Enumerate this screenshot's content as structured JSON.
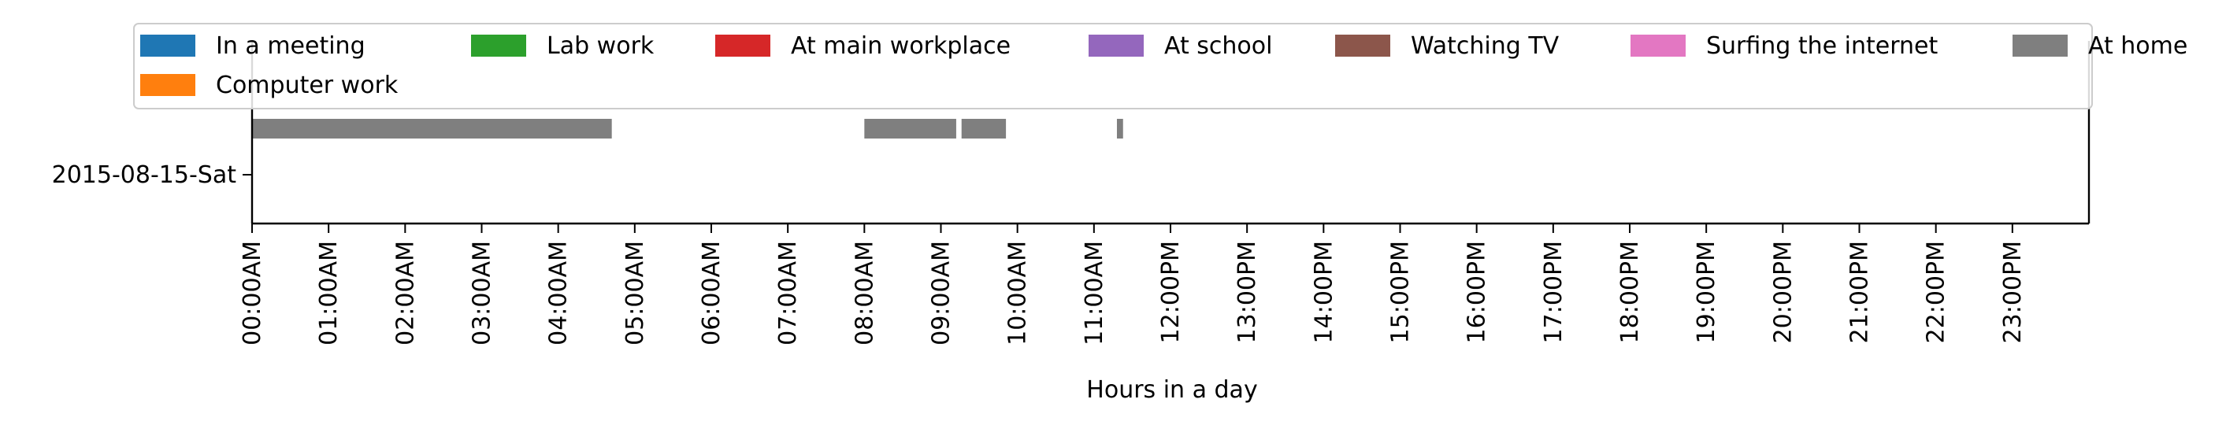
{
  "chart_data": {
    "type": "timeline",
    "title": "",
    "xlabel": "Hours in a day",
    "ylabel": "",
    "xlim": [
      0,
      24
    ],
    "x_tick_values": [
      0,
      1,
      2,
      3,
      4,
      5,
      6,
      7,
      8,
      9,
      10,
      11,
      12,
      13,
      14,
      15,
      16,
      17,
      18,
      19,
      20,
      21,
      22,
      23
    ],
    "x_tick_labels": [
      "00:00AM",
      "01:00AM",
      "02:00AM",
      "03:00AM",
      "04:00AM",
      "05:00AM",
      "06:00AM",
      "07:00AM",
      "08:00AM",
      "09:00AM",
      "10:00AM",
      "11:00AM",
      "12:00PM",
      "13:00PM",
      "14:00PM",
      "15:00PM",
      "16:00PM",
      "17:00PM",
      "18:00PM",
      "19:00PM",
      "20:00PM",
      "21:00PM",
      "22:00PM",
      "23:00PM"
    ],
    "y_tick_labels": [
      "2015-08-15-Sat"
    ],
    "legend_position": "top",
    "legend": [
      {
        "label": "In a meeting",
        "color": "#1f77b4"
      },
      {
        "label": "Lab work",
        "color": "#2ca02c"
      },
      {
        "label": "At main workplace",
        "color": "#d62728"
      },
      {
        "label": "At school",
        "color": "#9467bd"
      },
      {
        "label": "Watching TV",
        "color": "#8c564b"
      },
      {
        "label": "Surfing the internet",
        "color": "#e377c2"
      },
      {
        "label": "At home",
        "color": "#7f7f7f"
      },
      {
        "label": "Computer work",
        "color": "#ff7f0e"
      }
    ],
    "series": [
      {
        "name": "At home",
        "color": "#7f7f7f",
        "intervals": [
          {
            "start": 0.0,
            "end": 4.7
          },
          {
            "start": 8.0,
            "end": 9.2
          },
          {
            "start": 9.27,
            "end": 9.85
          },
          {
            "start": 11.3,
            "end": 11.38
          }
        ]
      }
    ]
  }
}
